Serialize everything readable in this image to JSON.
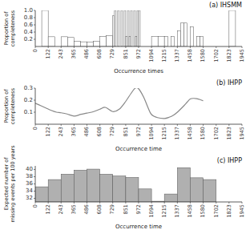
{
  "chart_data": [
    {
      "type": "bar",
      "title": "(a) IHSMM",
      "x_label": "Occurrence times",
      "y_label": "Proportion of\ncompleteness",
      "bins": [
        0,
        61,
        122,
        183,
        243,
        304,
        365,
        425,
        486,
        547,
        608,
        668,
        729,
        745,
        760,
        775,
        790,
        806,
        821,
        836,
        851,
        867,
        882,
        897,
        912,
        927,
        942,
        957,
        972,
        987,
        1002,
        1017,
        1033,
        1094,
        1155,
        1215,
        1246,
        1276,
        1307,
        1337,
        1368,
        1399,
        1429,
        1458,
        1489,
        1520,
        1550,
        1580,
        1641,
        1702,
        1763,
        1823,
        1884,
        1945
      ],
      "values": [
        0.0,
        1.0,
        0.27,
        0.0,
        0.27,
        0.25,
        0.15,
        0.13,
        0.12,
        0.15,
        0.28,
        0.3,
        0.85,
        1.0,
        0.0,
        1.0,
        0.0,
        1.0,
        0.0,
        1.0,
        0.28,
        1.0,
        0.28,
        1.0,
        0.0,
        1.0,
        0.28,
        1.0,
        1.0,
        0.0,
        0.0,
        0.0,
        0.0,
        0.28,
        0.28,
        0.28,
        0.0,
        0.28,
        0.0,
        0.43,
        0.65,
        0.65,
        0.0,
        0.55,
        0.0,
        0.28,
        0.28,
        0.0,
        0.0,
        0.0,
        0.0,
        1.0,
        0.0
      ],
      "color": "#ffffff",
      "xlim": [
        0,
        1945
      ],
      "xticks": [
        0,
        122,
        243,
        365,
        486,
        608,
        729,
        851,
        972,
        1094,
        1215,
        1337,
        1458,
        1580,
        1702,
        1823,
        1945
      ],
      "ylim": [
        0,
        1.0
      ],
      "yticks": [
        0.2,
        0.4,
        0.6,
        0.8,
        {
          "value": 1.0,
          "label": "1.0"
        }
      ],
      "grid": false
    },
    {
      "type": "line",
      "title": "(b) IHPP",
      "x_label": "Occurrence time",
      "y_label": "Proportion of\ncompleteness",
      "x": [
        0,
        50,
        100,
        150,
        200,
        243,
        300,
        365,
        430,
        486,
        550,
        608,
        660,
        729,
        790,
        851,
        900,
        940,
        972,
        1020,
        1060,
        1094,
        1150,
        1215,
        1260,
        1300,
        1337,
        1400,
        1430,
        1458,
        1490,
        1520,
        1550,
        1580
      ],
      "values": [
        0.175,
        0.155,
        0.135,
        0.115,
        0.1,
        0.095,
        0.085,
        0.068,
        0.082,
        0.092,
        0.105,
        0.125,
        0.14,
        0.105,
        0.125,
        0.19,
        0.255,
        0.3,
        0.295,
        0.225,
        0.14,
        0.08,
        0.055,
        0.048,
        0.058,
        0.075,
        0.1,
        0.155,
        0.185,
        0.21,
        0.215,
        0.212,
        0.205,
        0.195
      ],
      "color": "#888888",
      "xlim": [
        0,
        1945
      ],
      "xticks": [
        0,
        122,
        243,
        365,
        486,
        608,
        729,
        851,
        972,
        1094,
        1215,
        1337,
        1458,
        1580,
        1702,
        1823,
        1945
      ],
      "ylim": [
        0,
        0.3
      ],
      "yticks": [
        0.1,
        0.2,
        0.3
      ],
      "grid": false
    },
    {
      "type": "bar",
      "title": "(c) IHPP",
      "x_label": "Occurrence time",
      "y_label": "Expected number of\nmissing events per 100 years",
      "bins": [
        0,
        122,
        243,
        365,
        486,
        608,
        729,
        851,
        972,
        1094,
        1215,
        1337,
        1458,
        1580,
        1702
      ],
      "values": [
        35.2,
        37.2,
        38.7,
        39.8,
        40.1,
        38.7,
        38.2,
        37.8,
        34.6,
        31.2,
        33.2,
        40.5,
        37.7,
        37.2
      ],
      "bottom": 31,
      "color": "#b0b0b0",
      "xlim": [
        0,
        1945
      ],
      "xticks": [
        0,
        122,
        243,
        365,
        486,
        608,
        729,
        851,
        972,
        1094,
        1215,
        1337,
        1458,
        1580,
        1702,
        1823,
        1945
      ],
      "ylim": [
        31,
        41
      ],
      "yticks": [
        32,
        34,
        36,
        38,
        40
      ],
      "grid": false
    }
  ]
}
